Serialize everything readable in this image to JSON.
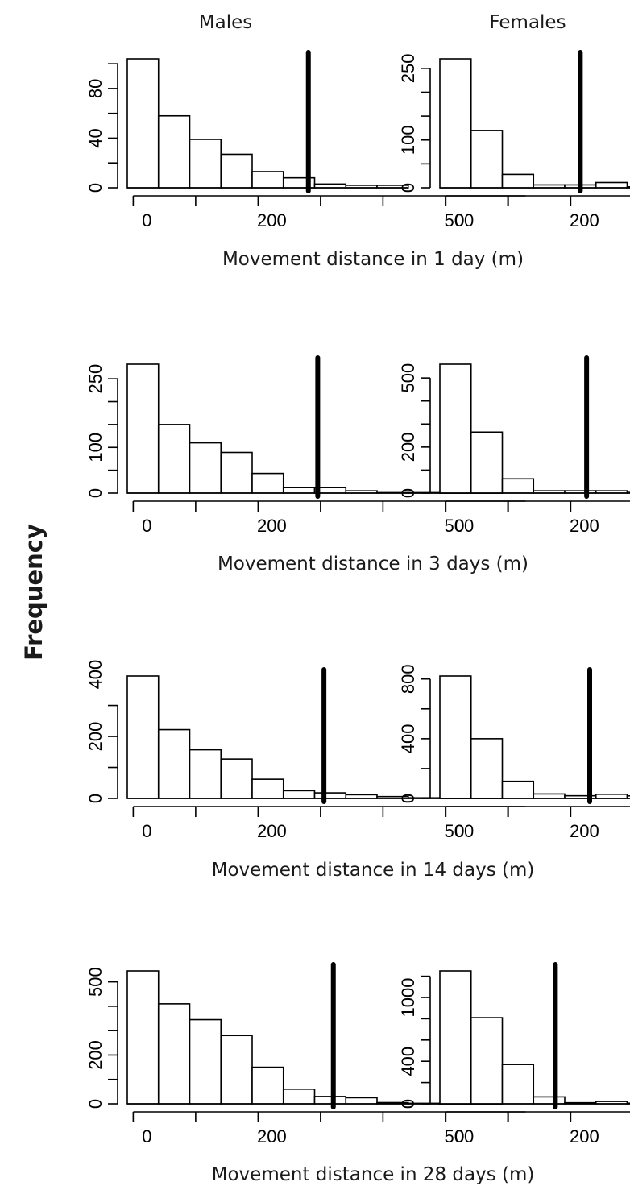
{
  "figure": {
    "column_titles": [
      "Males",
      "Females"
    ],
    "ylabel": "Frequency",
    "row_labels": [
      "Movement distance in 1 day (m)",
      "Movement distance in 3 days (m)",
      "Movement distance in 14 days (m)",
      "Movement distance in 28 days (m)"
    ]
  },
  "chart_data": [
    {
      "type": "bar",
      "panel": "Males, 1 day",
      "xlabel": "Movement distance in 1 day (m)",
      "bin_width": 50,
      "bin_start": -25,
      "counts": [
        104,
        58,
        39,
        27,
        13,
        8,
        3,
        2,
        2
      ],
      "xlim": [
        -25,
        625
      ],
      "xticks": [
        0,
        200,
        500
      ],
      "yticks": [
        0,
        40,
        80
      ],
      "ylim": [
        0,
        104
      ],
      "vline": 265
    },
    {
      "type": "bar",
      "panel": "Females, 1 day",
      "xlabel": "Movement distance in 1 day (m)",
      "bin_width": 50,
      "bin_start": -25,
      "counts": [
        270,
        120,
        28,
        6,
        6,
        11,
        2
      ],
      "xlim": [
        -25,
        625
      ],
      "xticks": [
        0,
        200,
        500
      ],
      "yticks": [
        0,
        100,
        250
      ],
      "ylim": [
        0,
        270
      ],
      "vline": 200
    },
    {
      "type": "bar",
      "panel": "Males, 3 days",
      "xlabel": "Movement distance in 3 days (m)",
      "bin_width": 50,
      "bin_start": -25,
      "counts": [
        282,
        150,
        110,
        89,
        43,
        12,
        12,
        5,
        1,
        1,
        1,
        1
      ],
      "xlim": [
        -25,
        625
      ],
      "xticks": [
        0,
        200,
        500
      ],
      "yticks": [
        0,
        100,
        250
      ],
      "ylim": [
        0,
        282
      ],
      "vline": 280
    },
    {
      "type": "bar",
      "panel": "Females, 3 days",
      "xlabel": "Movement distance in 3 days (m)",
      "bin_width": 50,
      "bin_start": -25,
      "counts": [
        560,
        265,
        62,
        10,
        10,
        10,
        3
      ],
      "xlim": [
        -25,
        625
      ],
      "xticks": [
        0,
        200,
        500
      ],
      "yticks": [
        0,
        200,
        500
      ],
      "ylim": [
        0,
        560
      ],
      "vline": 210
    },
    {
      "type": "bar",
      "panel": "Males, 14 days",
      "xlabel": "Movement distance in 14 days (m)",
      "bin_width": 50,
      "bin_start": -25,
      "counts": [
        395,
        222,
        157,
        127,
        62,
        25,
        18,
        12,
        6,
        2,
        2,
        2
      ],
      "xlim": [
        -25,
        625
      ],
      "xticks": [
        0,
        200,
        500
      ],
      "yticks": [
        0,
        200,
        400
      ],
      "ylim": [
        0,
        395
      ],
      "vline": 290
    },
    {
      "type": "bar",
      "panel": "Females, 14 days",
      "xlabel": "Movement distance in 14 days (m)",
      "bin_width": 50,
      "bin_start": -25,
      "counts": [
        820,
        400,
        115,
        30,
        18,
        28,
        17
      ],
      "xlim": [
        -25,
        625
      ],
      "xticks": [
        0,
        200,
        500
      ],
      "yticks": [
        0,
        400,
        800
      ],
      "ylim": [
        0,
        820
      ],
      "vline": 215
    },
    {
      "type": "bar",
      "panel": "Males, 28 days",
      "xlabel": "Movement distance in 28 days (m)",
      "bin_width": 50,
      "bin_start": -25,
      "counts": [
        545,
        410,
        345,
        280,
        150,
        60,
        30,
        25,
        5,
        2,
        2,
        2
      ],
      "xlim": [
        -25,
        625
      ],
      "xticks": [
        0,
        200,
        500
      ],
      "yticks": [
        0,
        200,
        500
      ],
      "ylim": [
        0,
        545
      ],
      "vline": 305
    },
    {
      "type": "bar",
      "panel": "Females, 28 days",
      "xlabel": "Movement distance in 28 days (m)",
      "bin_width": 50,
      "bin_start": -25,
      "counts": [
        1250,
        810,
        370,
        65,
        10,
        22,
        6
      ],
      "xlim": [
        -25,
        625
      ],
      "xticks": [
        0,
        200,
        500
      ],
      "yticks": [
        0,
        400,
        1000
      ],
      "ylim": [
        0,
        1250
      ],
      "vline": 160
    }
  ]
}
